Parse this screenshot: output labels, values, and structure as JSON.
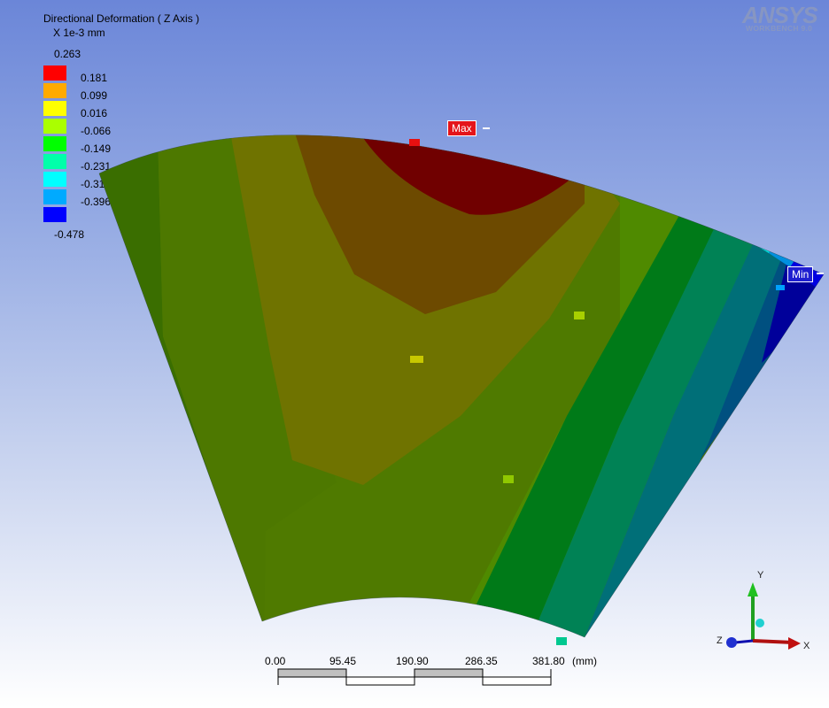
{
  "legend": {
    "title": "Directional Deformation ( Z Axis )",
    "units": "X 1e-3 mm",
    "max_value": "0.263",
    "min_value": "-0.478",
    "bands": [
      {
        "label": "0.181",
        "color": "#ff0000"
      },
      {
        "label": "0.099",
        "color": "#ffaa00"
      },
      {
        "label": "0.016",
        "color": "#ffff00"
      },
      {
        "label": "-0.066",
        "color": "#aaff00"
      },
      {
        "label": "-0.149",
        "color": "#00ff00"
      },
      {
        "label": "-0.231",
        "color": "#00ffaa"
      },
      {
        "label": "-0.314",
        "color": "#00ffff"
      },
      {
        "label": "-0.396",
        "color": "#00aaff"
      },
      {
        "label": "",
        "color": "#0000ff"
      }
    ]
  },
  "logo": {
    "brand": "ANSYS",
    "product": "WORKBENCH 9.0"
  },
  "probes": {
    "max_label": "Max",
    "min_label": "Min"
  },
  "scale_bar": {
    "ticks": [
      "0.00",
      "95.45",
      "190.90",
      "286.35",
      "381.80"
    ],
    "unit": "(mm)"
  },
  "triad": {
    "x": "X",
    "y": "Y",
    "z": "Z"
  },
  "colors": {
    "background_top": "#6b86d8",
    "background_bottom": "#ffffff"
  }
}
